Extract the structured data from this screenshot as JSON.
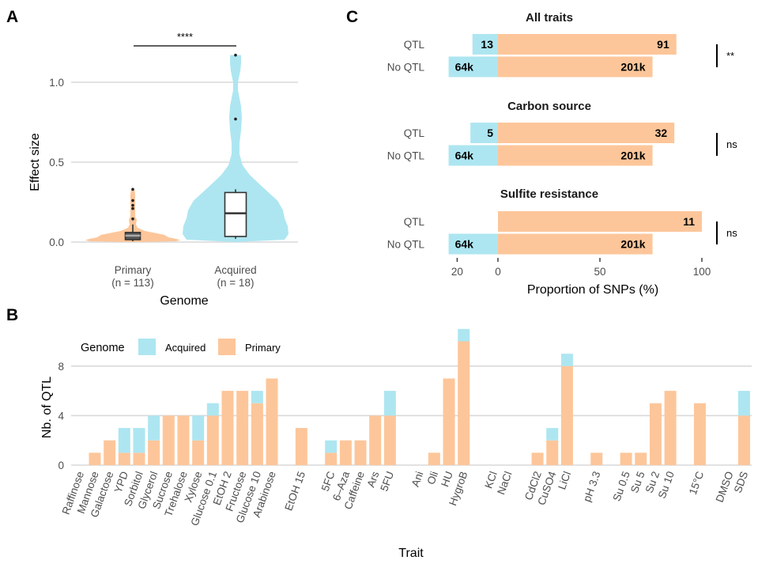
{
  "colors": {
    "acquired": "#ade6f1",
    "primary": "#fdc69a",
    "grid": "#d9d9d9",
    "box_line": "#333333"
  },
  "chart_data": [
    {
      "panel": "A",
      "type": "violin",
      "xlabel": "Genome",
      "ylabel": "Effect size",
      "ylim": [
        0,
        1.2
      ],
      "yticks": [
        "0.0",
        "0.5",
        "1.0"
      ],
      "ytick_values": [
        0,
        0.5,
        1.0
      ],
      "grid": "horizontal",
      "significance": "****",
      "groups": [
        {
          "name": "Primary",
          "n_label": "(n = 113)",
          "color_key": "primary",
          "box": {
            "whisker_low": 0.005,
            "q1": 0.015,
            "median": 0.04,
            "q3": 0.06,
            "whisker_high": 0.11
          },
          "outliers": [
            0.145,
            0.21,
            0.23,
            0.26,
            0.33
          ],
          "max": 0.33
        },
        {
          "name": "Acquired",
          "n_label": "(n = 18)",
          "color_key": "acquired",
          "box": {
            "whisker_low": 0.02,
            "q1": 0.035,
            "median": 0.18,
            "q3": 0.31,
            "whisker_high": 0.33
          },
          "outliers": [
            0.77,
            1.17
          ],
          "max": 1.17
        }
      ]
    },
    {
      "panel": "B",
      "type": "bar",
      "stacked": true,
      "xlabel": "Trait",
      "ylabel": "Nb. of QTL",
      "ylim": [
        0,
        10
      ],
      "yticks": [
        "0",
        "4",
        "8"
      ],
      "ytick_values": [
        0,
        4,
        8
      ],
      "grid": "horizontal",
      "legend": {
        "title": "Genome",
        "placement": "top-left",
        "entries": [
          {
            "label": "Acquired",
            "color_key": "acquired"
          },
          {
            "label": "Primary",
            "color_key": "primary"
          }
        ]
      },
      "categories": [
        "Raffinose",
        "Mannose",
        "Galactose",
        "YPD",
        "Sorbitol",
        "Glycerol",
        "Sucrose",
        "Trehalose",
        "Xylose",
        "Glucose 0.1",
        "EtOH 2",
        "Fructose",
        "Glucose 10",
        "Arabinose",
        "",
        "EtOH 15",
        "",
        "5FC",
        "6–Aza",
        "Caffeine",
        "Ars",
        "5FU",
        "",
        "Ani",
        "Oli",
        "HU",
        "HygroB",
        "",
        "KCl",
        "NaCl",
        "",
        "CdCl2",
        "CuSO4",
        "LiCl",
        "",
        "pH 3.3",
        "",
        "Su 0.5",
        "Su 5",
        "Su 2",
        "Su 10",
        "",
        "15°C",
        "",
        "DMSO",
        "SDS"
      ],
      "series": [
        {
          "name": "Primary",
          "values": [
            0,
            1,
            2,
            1,
            1,
            2,
            4,
            4,
            2,
            4,
            6,
            6,
            5,
            7,
            0,
            3,
            0,
            1,
            2,
            2,
            4,
            4,
            0,
            0,
            1,
            7,
            10,
            0,
            0,
            0,
            0,
            1,
            2,
            8,
            0,
            1,
            0,
            1,
            1,
            5,
            6,
            0,
            5,
            0,
            0,
            4
          ]
        },
        {
          "name": "Acquired",
          "values": [
            0,
            0,
            0,
            2,
            2,
            2,
            0,
            0,
            2,
            1,
            0,
            0,
            1,
            0,
            0,
            0,
            0,
            1,
            0,
            0,
            0,
            2,
            0,
            0,
            0,
            0,
            1,
            0,
            0,
            0,
            0,
            0,
            1,
            1,
            0,
            0,
            0,
            0,
            0,
            0,
            0,
            0,
            0,
            0,
            0,
            2
          ]
        }
      ]
    },
    {
      "panel": "C",
      "type": "bar",
      "orientation": "horizontal",
      "stacked": true,
      "xlabel": "Proportion of SNPs (%)",
      "xticks": [
        "20",
        "0",
        "50",
        "100"
      ],
      "xtick_values": [
        -20,
        0,
        50,
        100
      ],
      "xlim": [
        -25,
        100
      ],
      "facets": [
        {
          "title": "All traits",
          "significance": "**",
          "rows": [
            {
              "label": "QTL",
              "acquired_pct": 12.5,
              "primary_pct": 87.5,
              "acquired_label": "13",
              "primary_label": "91"
            },
            {
              "label": "No QTL",
              "acquired_pct": 24.2,
              "primary_pct": 75.8,
              "acquired_label": "64k",
              "primary_label": "201k"
            }
          ]
        },
        {
          "title": "Carbon source",
          "significance": "ns",
          "rows": [
            {
              "label": "QTL",
              "acquired_pct": 13.5,
              "primary_pct": 86.5,
              "acquired_label": "5",
              "primary_label": "32"
            },
            {
              "label": "No QTL",
              "acquired_pct": 24.2,
              "primary_pct": 75.8,
              "acquired_label": "64k",
              "primary_label": "201k"
            }
          ]
        },
        {
          "title": "Sulfite resistance",
          "significance": "ns",
          "rows": [
            {
              "label": "QTL",
              "acquired_pct": 0,
              "primary_pct": 100,
              "acquired_label": "",
              "primary_label": "11"
            },
            {
              "label": "No QTL",
              "acquired_pct": 24.2,
              "primary_pct": 75.8,
              "acquired_label": "64k",
              "primary_label": "201k"
            }
          ]
        }
      ]
    }
  ],
  "panels": {
    "a": "A",
    "b": "B",
    "c": "C"
  }
}
